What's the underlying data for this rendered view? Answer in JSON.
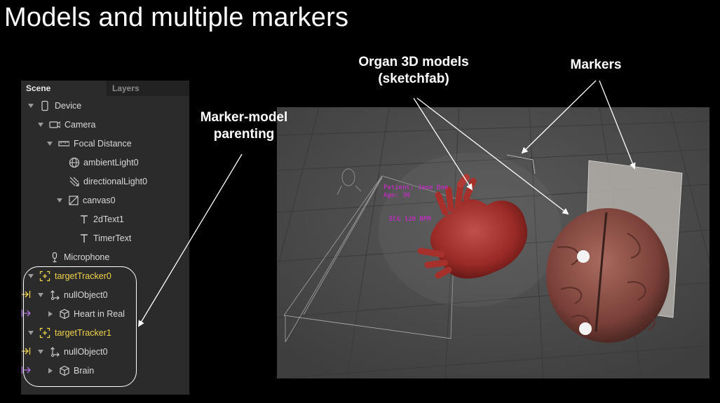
{
  "slide": {
    "title": "Models and multiple markers"
  },
  "panel": {
    "tabs": [
      {
        "label": "Scene",
        "active": true
      },
      {
        "label": "Layers",
        "active": false
      }
    ],
    "tree": [
      {
        "label": "Device",
        "icon": "phone-icon",
        "expanded": true
      },
      {
        "label": "Camera",
        "icon": "camera-icon",
        "expanded": true
      },
      {
        "label": "Focal Distance",
        "icon": "ruler-icon",
        "expanded": true
      },
      {
        "label": "ambientLight0",
        "icon": "globe-light-icon"
      },
      {
        "label": "directionalLight0",
        "icon": "directional-light-icon"
      },
      {
        "label": "canvas0",
        "icon": "canvas-icon",
        "expanded": true
      },
      {
        "label": "2dText1",
        "icon": "text-icon"
      },
      {
        "label": "TimerText",
        "icon": "text-icon"
      },
      {
        "label": "Microphone",
        "icon": "microphone-icon"
      },
      {
        "label": "targetTracker0",
        "icon": "target-tracker-icon",
        "expanded": true,
        "highlight": "#f0d24a"
      },
      {
        "label": "nullObject0",
        "icon": "null-object-icon",
        "expanded": true,
        "tail": "tracker-link-icon"
      },
      {
        "label": "Heart in Real",
        "icon": "cube-icon",
        "expanded": false,
        "tail": "child-link-icon"
      },
      {
        "label": "targetTracker1",
        "icon": "target-tracker-icon",
        "expanded": true,
        "highlight": "#f0d24a"
      },
      {
        "label": "nullObject0",
        "icon": "null-object-icon",
        "expanded": true,
        "tail": "tracker-link-icon"
      },
      {
        "label": "Brain",
        "icon": "cube-icon",
        "expanded": false,
        "tail": "child-link-icon"
      }
    ]
  },
  "annotations": {
    "marker_model": "Marker-model\nparenting",
    "organ_models_line1": "Organ 3D models",
    "organ_models_line2": "(sketchfab)",
    "markers": "Markers"
  },
  "viewport": {
    "overlay_text": [
      "Patient: Jane Doe",
      "Age: 30",
      "ECG 120 BPM"
    ],
    "overlay_color": "#e020e0"
  },
  "colors": {
    "yellow": "#f0d24a",
    "purple": "#b070e0"
  }
}
